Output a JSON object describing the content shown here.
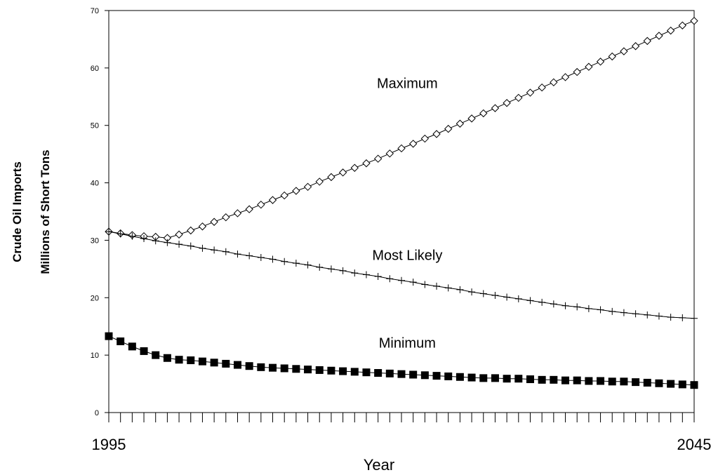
{
  "chart_data": {
    "type": "line",
    "xlabel": "Year",
    "ylabel": [
      "Crude Oil Imports",
      "Millions of Short Tons"
    ],
    "xlim": [
      1995,
      2045
    ],
    "ylim": [
      0,
      70
    ],
    "x_tick_labels": [
      "1995",
      "2045"
    ],
    "y_ticks": [
      0,
      10,
      20,
      30,
      40,
      50,
      60,
      70
    ],
    "grid": false,
    "legend": "none",
    "annotations": [
      {
        "text": "Maximum",
        "x": 2020.5,
        "y": 56.5
      },
      {
        "text": "Most Likely",
        "x": 2020.5,
        "y": 26.6
      },
      {
        "text": "Minimum",
        "x": 2020.5,
        "y": 11.3
      }
    ],
    "x": [
      1995,
      1996,
      1997,
      1998,
      1999,
      2000,
      2001,
      2002,
      2003,
      2004,
      2005,
      2006,
      2007,
      2008,
      2009,
      2010,
      2011,
      2012,
      2013,
      2014,
      2015,
      2016,
      2017,
      2018,
      2019,
      2020,
      2021,
      2022,
      2023,
      2024,
      2025,
      2026,
      2027,
      2028,
      2029,
      2030,
      2031,
      2032,
      2033,
      2034,
      2035,
      2036,
      2037,
      2038,
      2039,
      2040,
      2041,
      2042,
      2043,
      2044,
      2045
    ],
    "series": [
      {
        "name": "Maximum",
        "marker": "diamond-open",
        "values": [
          31.5,
          31.2,
          30.9,
          30.7,
          30.6,
          30.4,
          31.0,
          31.7,
          32.4,
          33.2,
          34.0,
          34.7,
          35.4,
          36.2,
          37.0,
          37.8,
          38.6,
          39.3,
          40.2,
          41.0,
          41.8,
          42.6,
          43.4,
          44.2,
          45.1,
          46.0,
          46.8,
          47.7,
          48.5,
          49.4,
          50.3,
          51.2,
          52.1,
          53.0,
          53.9,
          54.8,
          55.7,
          56.6,
          57.5,
          58.4,
          59.3,
          60.2,
          61.1,
          62.0,
          62.9,
          63.8,
          64.7,
          65.6,
          66.5,
          67.4,
          68.2
        ]
      },
      {
        "name": "Most Likely",
        "marker": "plus",
        "values": [
          31.5,
          31.1,
          30.7,
          30.3,
          29.9,
          29.6,
          29.3,
          29.0,
          28.6,
          28.3,
          28.0,
          27.6,
          27.3,
          27.0,
          26.7,
          26.3,
          26.0,
          25.7,
          25.3,
          25.0,
          24.7,
          24.3,
          24.0,
          23.7,
          23.3,
          23.0,
          22.7,
          22.3,
          22.0,
          21.7,
          21.4,
          21.0,
          20.7,
          20.4,
          20.1,
          19.8,
          19.5,
          19.2,
          18.9,
          18.6,
          18.4,
          18.1,
          17.9,
          17.6,
          17.4,
          17.2,
          17.0,
          16.8,
          16.6,
          16.5,
          16.4
        ]
      },
      {
        "name": "Minimum",
        "marker": "square-filled",
        "values": [
          13.3,
          12.4,
          11.5,
          10.7,
          10.0,
          9.5,
          9.2,
          9.1,
          8.9,
          8.7,
          8.5,
          8.3,
          8.1,
          7.9,
          7.8,
          7.7,
          7.6,
          7.5,
          7.4,
          7.3,
          7.2,
          7.1,
          7.0,
          6.9,
          6.8,
          6.7,
          6.6,
          6.5,
          6.4,
          6.3,
          6.2,
          6.1,
          6.0,
          6.0,
          5.9,
          5.9,
          5.8,
          5.7,
          5.7,
          5.6,
          5.6,
          5.5,
          5.5,
          5.4,
          5.4,
          5.3,
          5.2,
          5.1,
          5.0,
          4.9,
          4.8
        ]
      }
    ]
  }
}
